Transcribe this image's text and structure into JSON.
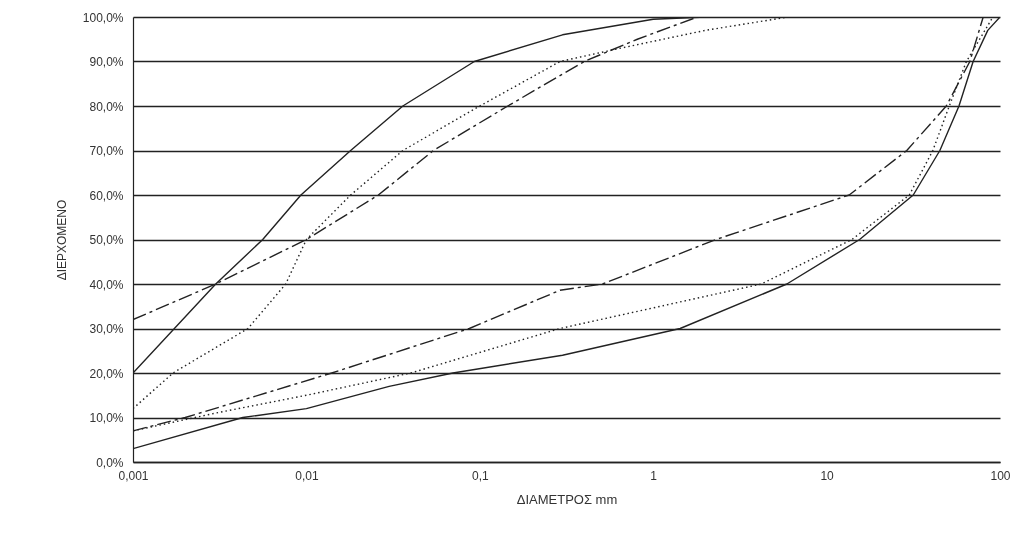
{
  "chart_data": {
    "type": "line",
    "xlabel": "ΔΙΑΜΕΤΡΟΣ mm",
    "ylabel": "ΔΙΕΡΧΟΜΕΝΟ",
    "log": "x",
    "grid": "y",
    "marker": "none",
    "xlim": [
      0.001,
      100
    ],
    "ylim": [
      0,
      100
    ],
    "xticks": [
      {
        "value": 0.001,
        "label": "0,001"
      },
      {
        "value": 0.01,
        "label": "0,01"
      },
      {
        "value": 0.1,
        "label": "0,1"
      },
      1,
      10,
      100
    ],
    "yticks": [
      {
        "value": 0,
        "label": "0,0%"
      },
      {
        "value": 10,
        "label": "10,0%"
      },
      {
        "value": 20,
        "label": "20,0%"
      },
      {
        "value": 30,
        "label": "30,0%"
      },
      {
        "value": 40,
        "label": "40,0%"
      },
      {
        "value": 50,
        "label": "50,0%"
      },
      {
        "value": 60,
        "label": "60,0%"
      },
      {
        "value": 70,
        "label": "70,0%"
      },
      {
        "value": 80,
        "label": "80,0%"
      },
      {
        "value": 90,
        "label": "90,0%"
      },
      {
        "value": 100,
        "label": "100,0%"
      }
    ],
    "series": [
      {
        "color": "#222222",
        "line_style": "solid",
        "x": [
          0.001,
          0.003,
          0.0056,
          0.0093,
          0.018,
          0.036,
          0.093,
          0.3,
          1,
          2
        ],
        "values": [
          20,
          40,
          50,
          60,
          70,
          80,
          90,
          96,
          99.5,
          100
        ]
      },
      {
        "color": "#222222",
        "line_style": "dotted",
        "x": [
          0.001,
          0.0017,
          0.0046,
          0.0076,
          0.01,
          0.018,
          0.036,
          0.1,
          0.29,
          0.65,
          2,
          5,
          6
        ],
        "values": [
          12,
          20,
          30,
          40,
          50,
          60,
          70,
          80,
          90,
          93,
          97,
          99.5,
          100
        ]
      },
      {
        "color": "#222222",
        "line_style": "dashed",
        "x": [
          0.001,
          0.003,
          0.01,
          0.026,
          0.054,
          0.145,
          0.4,
          0.81,
          1.8
        ],
        "values": [
          32,
          40,
          50,
          60,
          70,
          80,
          90,
          95,
          100
        ]
      },
      {
        "color": "#222222",
        "line_style": "solid",
        "x": [
          0.001,
          0.0043,
          0.01,
          0.03,
          0.07,
          0.3,
          1.43,
          5.9,
          15.5,
          31.6,
          45,
          58,
          70,
          85,
          100
        ],
        "values": [
          3,
          10,
          12,
          17,
          20,
          24,
          30,
          40,
          50,
          60,
          70,
          80,
          90,
          97,
          100
        ]
      },
      {
        "color": "#222222",
        "line_style": "dotted",
        "x": [
          0.001,
          0.003,
          0.01,
          0.04,
          0.29,
          4.2,
          14,
          30,
          41,
          51,
          64,
          91
        ],
        "values": [
          7,
          11,
          15,
          20,
          30,
          40,
          50,
          60,
          70,
          80,
          90,
          100
        ]
      },
      {
        "color": "#222222",
        "line_style": "dashed",
        "x": [
          0.001,
          0.002,
          0.014,
          0.087,
          0.29,
          0.51,
          2.3,
          13.5,
          29,
          49,
          67,
          80
        ],
        "values": [
          7,
          10,
          20,
          30,
          38.6,
          40,
          50,
          60,
          70,
          80,
          90,
          100
        ]
      }
    ]
  }
}
